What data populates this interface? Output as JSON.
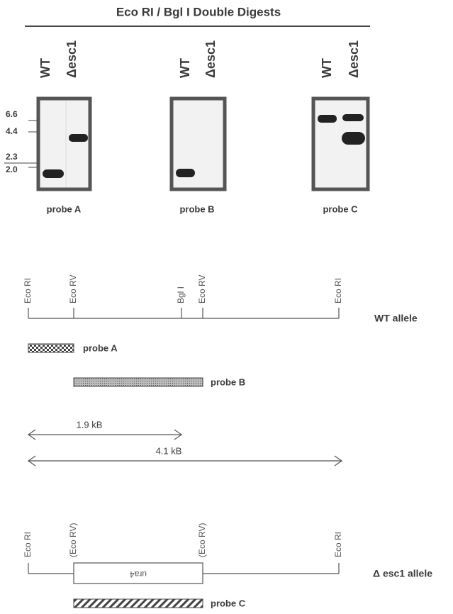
{
  "title": "Eco RI / Bgl I Double Digests",
  "blots": [
    {
      "lanes": [
        "WT",
        "Δesc1"
      ],
      "caption": "probe A"
    },
    {
      "lanes": [
        "WT",
        "Δesc1"
      ],
      "caption": "probe B"
    },
    {
      "lanes": [
        "WT",
        "Δesc1"
      ],
      "caption": "probe C"
    }
  ],
  "size_markers": [
    "6.6",
    "4.4",
    "2.3",
    "2.0"
  ],
  "wt_map": {
    "sites": [
      "Eco RI",
      "Eco RV",
      "Bgl I",
      "Eco RV",
      "Eco RI"
    ],
    "label": "WT allele",
    "probes": [
      "probe A",
      "probe B"
    ],
    "distances": [
      "1.9 kB",
      "4.1 kB"
    ]
  },
  "mutant_map": {
    "sites": [
      "Eco RI",
      "(Eco RV)",
      "(Eco RV)",
      "Eco RI"
    ],
    "insert": "ura4",
    "label": "Δ esc1 allele",
    "probe": "probe C"
  }
}
